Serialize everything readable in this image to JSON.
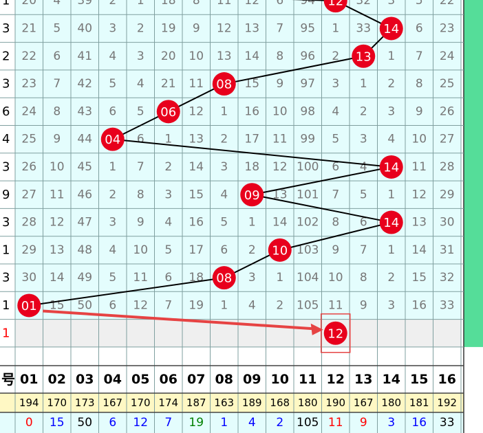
{
  "chart_data": {
    "type": "table",
    "row_leading_digits": [
      "1",
      "3",
      "2",
      "3",
      "6",
      "4",
      "3",
      "9",
      "3",
      "1",
      "3",
      "1",
      "1"
    ],
    "grid_rows": [
      [
        "20",
        "4",
        "39",
        "2",
        "1",
        "18",
        "8",
        "11",
        "12",
        "6",
        "94",
        "12",
        "32",
        "3",
        "5",
        "22"
      ],
      [
        "21",
        "5",
        "40",
        "3",
        "2",
        "19",
        "9",
        "12",
        "13",
        "7",
        "95",
        "1",
        "33",
        "14",
        "6",
        "23"
      ],
      [
        "22",
        "6",
        "41",
        "4",
        "3",
        "20",
        "10",
        "13",
        "14",
        "8",
        "96",
        "2",
        "13",
        "1",
        "7",
        "24"
      ],
      [
        "23",
        "7",
        "42",
        "5",
        "4",
        "21",
        "11",
        "08",
        "15",
        "9",
        "97",
        "3",
        "1",
        "2",
        "8",
        "25"
      ],
      [
        "24",
        "8",
        "43",
        "6",
        "5",
        "06",
        "12",
        "1",
        "16",
        "10",
        "98",
        "4",
        "2",
        "3",
        "9",
        "26"
      ],
      [
        "25",
        "9",
        "44",
        "04",
        "6",
        "1",
        "13",
        "2",
        "17",
        "11",
        "99",
        "5",
        "3",
        "4",
        "10",
        "27"
      ],
      [
        "26",
        "10",
        "45",
        "1",
        "7",
        "2",
        "14",
        "3",
        "18",
        "12",
        "100",
        "6",
        "4",
        "14",
        "11",
        "28"
      ],
      [
        "27",
        "11",
        "46",
        "2",
        "8",
        "3",
        "15",
        "4",
        "09",
        "13",
        "101",
        "7",
        "5",
        "1",
        "12",
        "29"
      ],
      [
        "28",
        "12",
        "47",
        "3",
        "9",
        "4",
        "16",
        "5",
        "1",
        "14",
        "102",
        "8",
        "6",
        "14",
        "13",
        "30"
      ],
      [
        "29",
        "13",
        "48",
        "4",
        "10",
        "5",
        "17",
        "6",
        "2",
        "10",
        "103",
        "9",
        "7",
        "1",
        "14",
        "31"
      ],
      [
        "30",
        "14",
        "49",
        "5",
        "11",
        "6",
        "18",
        "08",
        "3",
        "1",
        "104",
        "10",
        "8",
        "2",
        "15",
        "32"
      ],
      [
        "01",
        "15",
        "50",
        "6",
        "12",
        "7",
        "19",
        "1",
        "4",
        "2",
        "105",
        "11",
        "9",
        "3",
        "16",
        "33"
      ]
    ],
    "hits": [
      {
        "row": 0,
        "col": 12,
        "label": "12"
      },
      {
        "row": 1,
        "col": 14,
        "label": "14"
      },
      {
        "row": 2,
        "col": 13,
        "label": "13"
      },
      {
        "row": 3,
        "col": 8,
        "label": "08"
      },
      {
        "row": 4,
        "col": 6,
        "label": "06"
      },
      {
        "row": 5,
        "col": 4,
        "label": "04"
      },
      {
        "row": 6,
        "col": 14,
        "label": "14"
      },
      {
        "row": 7,
        "col": 9,
        "label": "09"
      },
      {
        "row": 8,
        "col": 14,
        "label": "14"
      },
      {
        "row": 9,
        "col": 10,
        "label": "10"
      },
      {
        "row": 10,
        "col": 8,
        "label": "08"
      },
      {
        "row": 11,
        "col": 1,
        "label": "01"
      }
    ],
    "prediction": {
      "row": 12,
      "col": 12,
      "label": "12"
    },
    "header_label_fragment": "号",
    "columns": [
      "01",
      "02",
      "03",
      "04",
      "05",
      "06",
      "07",
      "08",
      "09",
      "10",
      "11",
      "12",
      "13",
      "14",
      "15",
      "16"
    ],
    "totals_row": [
      "194",
      "170",
      "173",
      "167",
      "170",
      "174",
      "187",
      "163",
      "189",
      "168",
      "180",
      "190",
      "167",
      "180",
      "181",
      "192"
    ],
    "omission_row": [
      "0",
      "15",
      "50",
      "6",
      "12",
      "7",
      "19",
      "1",
      "4",
      "2",
      "105",
      "11",
      "9",
      "3",
      "16",
      "33"
    ],
    "omission_colors": [
      "#ff0000",
      "#0000ff",
      "#000000",
      "#0000ff",
      "#0000ff",
      "#0000ff",
      "#008000",
      "#0000ff",
      "#0000ff",
      "#0000ff",
      "#000000",
      "#ff0000",
      "#ff0000",
      "#0000ff",
      "#0000ff",
      "#000000"
    ]
  },
  "colors": {
    "grid_bg": "#e4fdfd",
    "grid_line": "#7f9f9f",
    "cell_text": "#777777",
    "ball": "#e8001c",
    "ball_text": "#ffffff",
    "trend_line": "#000000",
    "arrow": "#e64343",
    "box": "#e64343",
    "right_strip": "#55dd99",
    "empty_row_bg": "#efefef",
    "totals_bg": "#fff8c4",
    "omission_bg": "#e4fdfd",
    "leading_digit_red": "#ff0000"
  }
}
